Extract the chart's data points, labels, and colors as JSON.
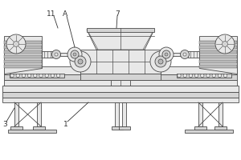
{
  "bg_color": "#ffffff",
  "line_color": "#4a4a4a",
  "gray1": "#cccccc",
  "gray2": "#b8b8b8",
  "gray3": "#e8e8e8",
  "gray4": "#d4d4d4",
  "label_color": "#333333",
  "figsize": [
    3.0,
    2.0
  ],
  "dpi": 100
}
